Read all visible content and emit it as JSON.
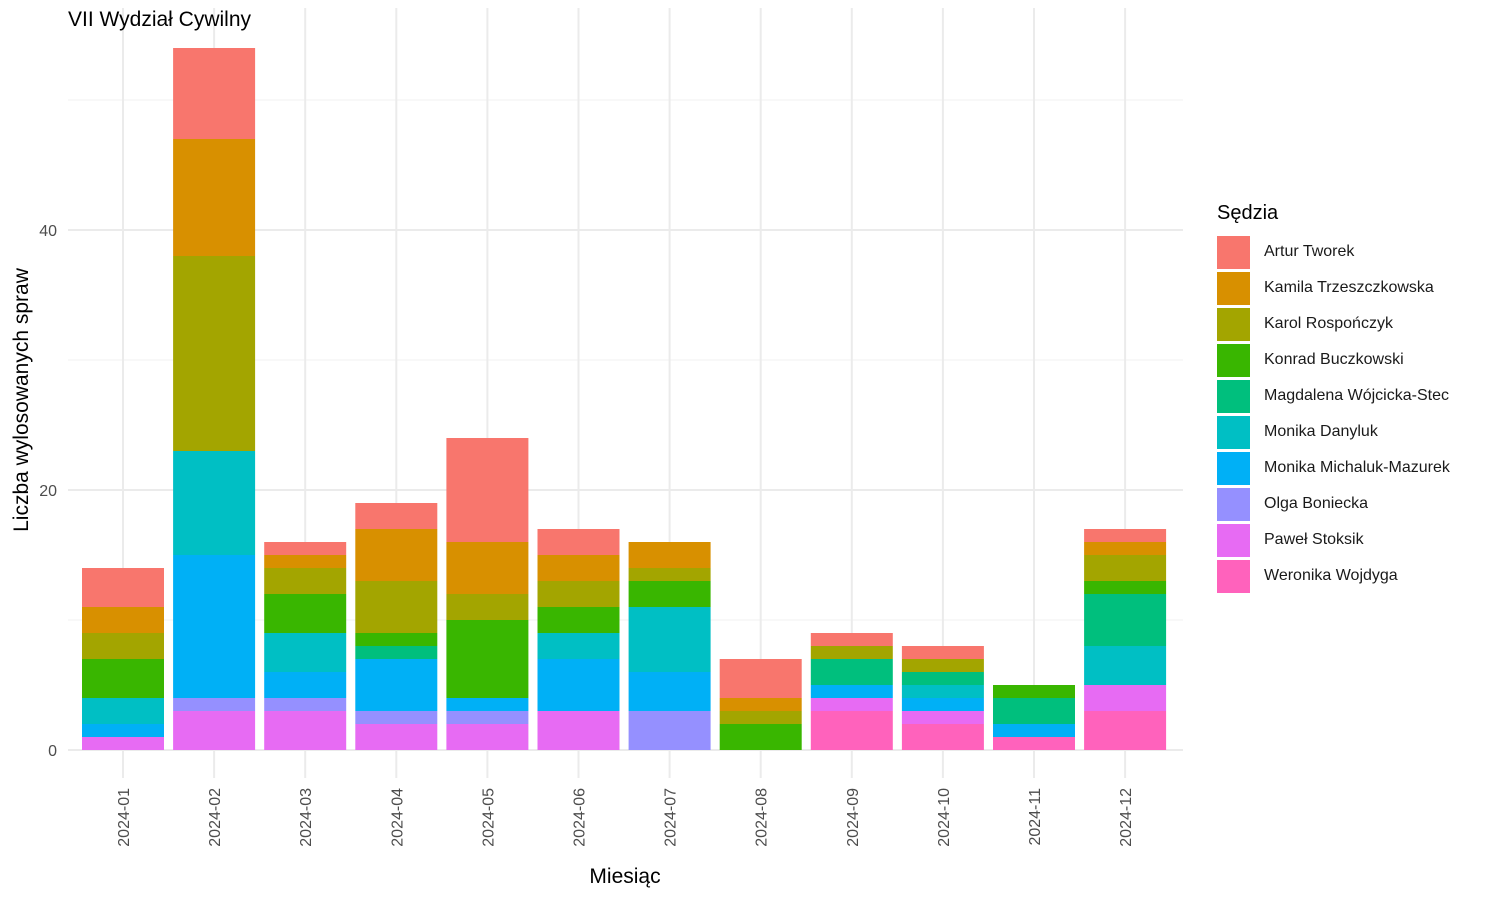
{
  "chart_data": {
    "type": "bar",
    "stacked": true,
    "title": "VII Wydział Cywilny",
    "xlabel": "Miesiąc",
    "ylabel": "Liczba wylosowanych spraw",
    "ylim": [
      0,
      56
    ],
    "yticks": [
      0,
      20,
      40
    ],
    "grid": true,
    "legend_title": "Sędzia",
    "legend_position": "right",
    "categories": [
      "2024-01",
      "2024-02",
      "2024-03",
      "2024-04",
      "2024-05",
      "2024-06",
      "2024-07",
      "2024-08",
      "2024-09",
      "2024-10",
      "2024-11",
      "2024-12"
    ],
    "series": [
      {
        "name": "Artur Tworek",
        "color": "#F8766D",
        "values": [
          3,
          7,
          1,
          2,
          8,
          2,
          0,
          3,
          1,
          1,
          0,
          1
        ]
      },
      {
        "name": "Kamila Trzeszczkowska",
        "color": "#D89000",
        "values": [
          2,
          9,
          1,
          4,
          4,
          2,
          2,
          1,
          0,
          0,
          0,
          1
        ]
      },
      {
        "name": "Karol Rospończyk",
        "color": "#A3A500",
        "values": [
          2,
          15,
          2,
          4,
          2,
          2,
          1,
          1,
          1,
          1,
          0,
          2
        ]
      },
      {
        "name": "Konrad Buczkowski",
        "color": "#39B600",
        "values": [
          3,
          0,
          3,
          1,
          6,
          2,
          2,
          2,
          0,
          0,
          1,
          1
        ]
      },
      {
        "name": "Magdalena Wójcicka-Stec",
        "color": "#00BF7D",
        "values": [
          0,
          0,
          0,
          1,
          0,
          0,
          0,
          0,
          2,
          1,
          2,
          4
        ]
      },
      {
        "name": "Monika Danyluk",
        "color": "#00BFC4",
        "values": [
          2,
          8,
          3,
          0,
          0,
          2,
          5,
          0,
          0,
          1,
          0,
          3
        ]
      },
      {
        "name": "Monika Michaluk-Mazurek",
        "color": "#00B0F6",
        "values": [
          1,
          11,
          2,
          4,
          1,
          4,
          3,
          0,
          1,
          1,
          1,
          0
        ]
      },
      {
        "name": "Olga Boniecka",
        "color": "#9590FF",
        "values": [
          0,
          1,
          1,
          1,
          1,
          0,
          3,
          0,
          0,
          0,
          0,
          0
        ]
      },
      {
        "name": "Paweł Stoksik",
        "color": "#E76BF3",
        "values": [
          1,
          3,
          3,
          2,
          2,
          3,
          0,
          0,
          1,
          1,
          0,
          2
        ]
      },
      {
        "name": "Weronika Wojdyga",
        "color": "#FF62BC",
        "values": [
          0,
          0,
          0,
          0,
          0,
          0,
          0,
          0,
          3,
          2,
          1,
          3
        ]
      }
    ]
  }
}
